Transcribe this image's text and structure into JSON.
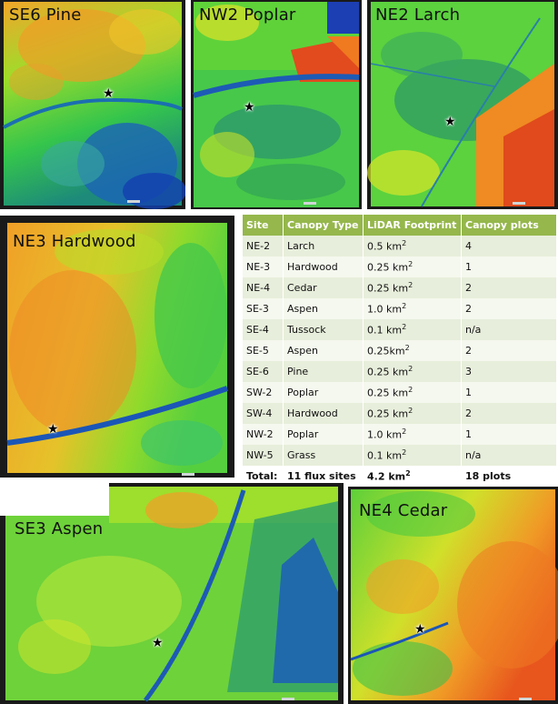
{
  "panels": {
    "se6": {
      "label": "SE6 Pine"
    },
    "nw2": {
      "label": "NW2 Poplar"
    },
    "ne2": {
      "label": "NE2 Larch"
    },
    "ne3": {
      "label": "NE3 Hardwood"
    },
    "se3": {
      "label": "SE3 Aspen"
    },
    "ne4": {
      "label": "NE4 Cedar"
    }
  },
  "star_glyph": "★",
  "table": {
    "headers": [
      "Site",
      "Canopy Type",
      "LiDAR Footprint",
      "Canopy plots"
    ],
    "rows": [
      {
        "site": "NE-2",
        "type": "Larch",
        "area": "0.5 km",
        "plots": "4"
      },
      {
        "site": "NE-3",
        "type": "Hardwood",
        "area": "0.25 km",
        "plots": "1"
      },
      {
        "site": "NE-4",
        "type": "Cedar",
        "area": "0.25 km",
        "plots": "2"
      },
      {
        "site": "SE-3",
        "type": "Aspen",
        "area": "1.0 km",
        "plots": "2"
      },
      {
        "site": "SE-4",
        "type": "Tussock",
        "area": "0.1 km",
        "plots": "n/a"
      },
      {
        "site": "SE-5",
        "type": "Aspen",
        "area": "0.25km",
        "plots": "2"
      },
      {
        "site": "SE-6",
        "type": "Pine",
        "area": "0.25 km",
        "plots": "3"
      },
      {
        "site": "SW-2",
        "type": "Poplar",
        "area": "0.25 km",
        "plots": "1"
      },
      {
        "site": "SW-4",
        "type": "Hardwood",
        "area": "0.25 km",
        "plots": "2"
      },
      {
        "site": "NW-2",
        "type": "Poplar",
        "area": "1.0 km",
        "plots": "1"
      },
      {
        "site": "NW-5",
        "type": "Grass",
        "area": "0.1 km",
        "plots": "n/a"
      }
    ],
    "total": {
      "label": "Total:",
      "sites": "11 flux sites",
      "area": "4.2 km",
      "plots": "18 plots"
    },
    "unit_superscript": "2"
  }
}
